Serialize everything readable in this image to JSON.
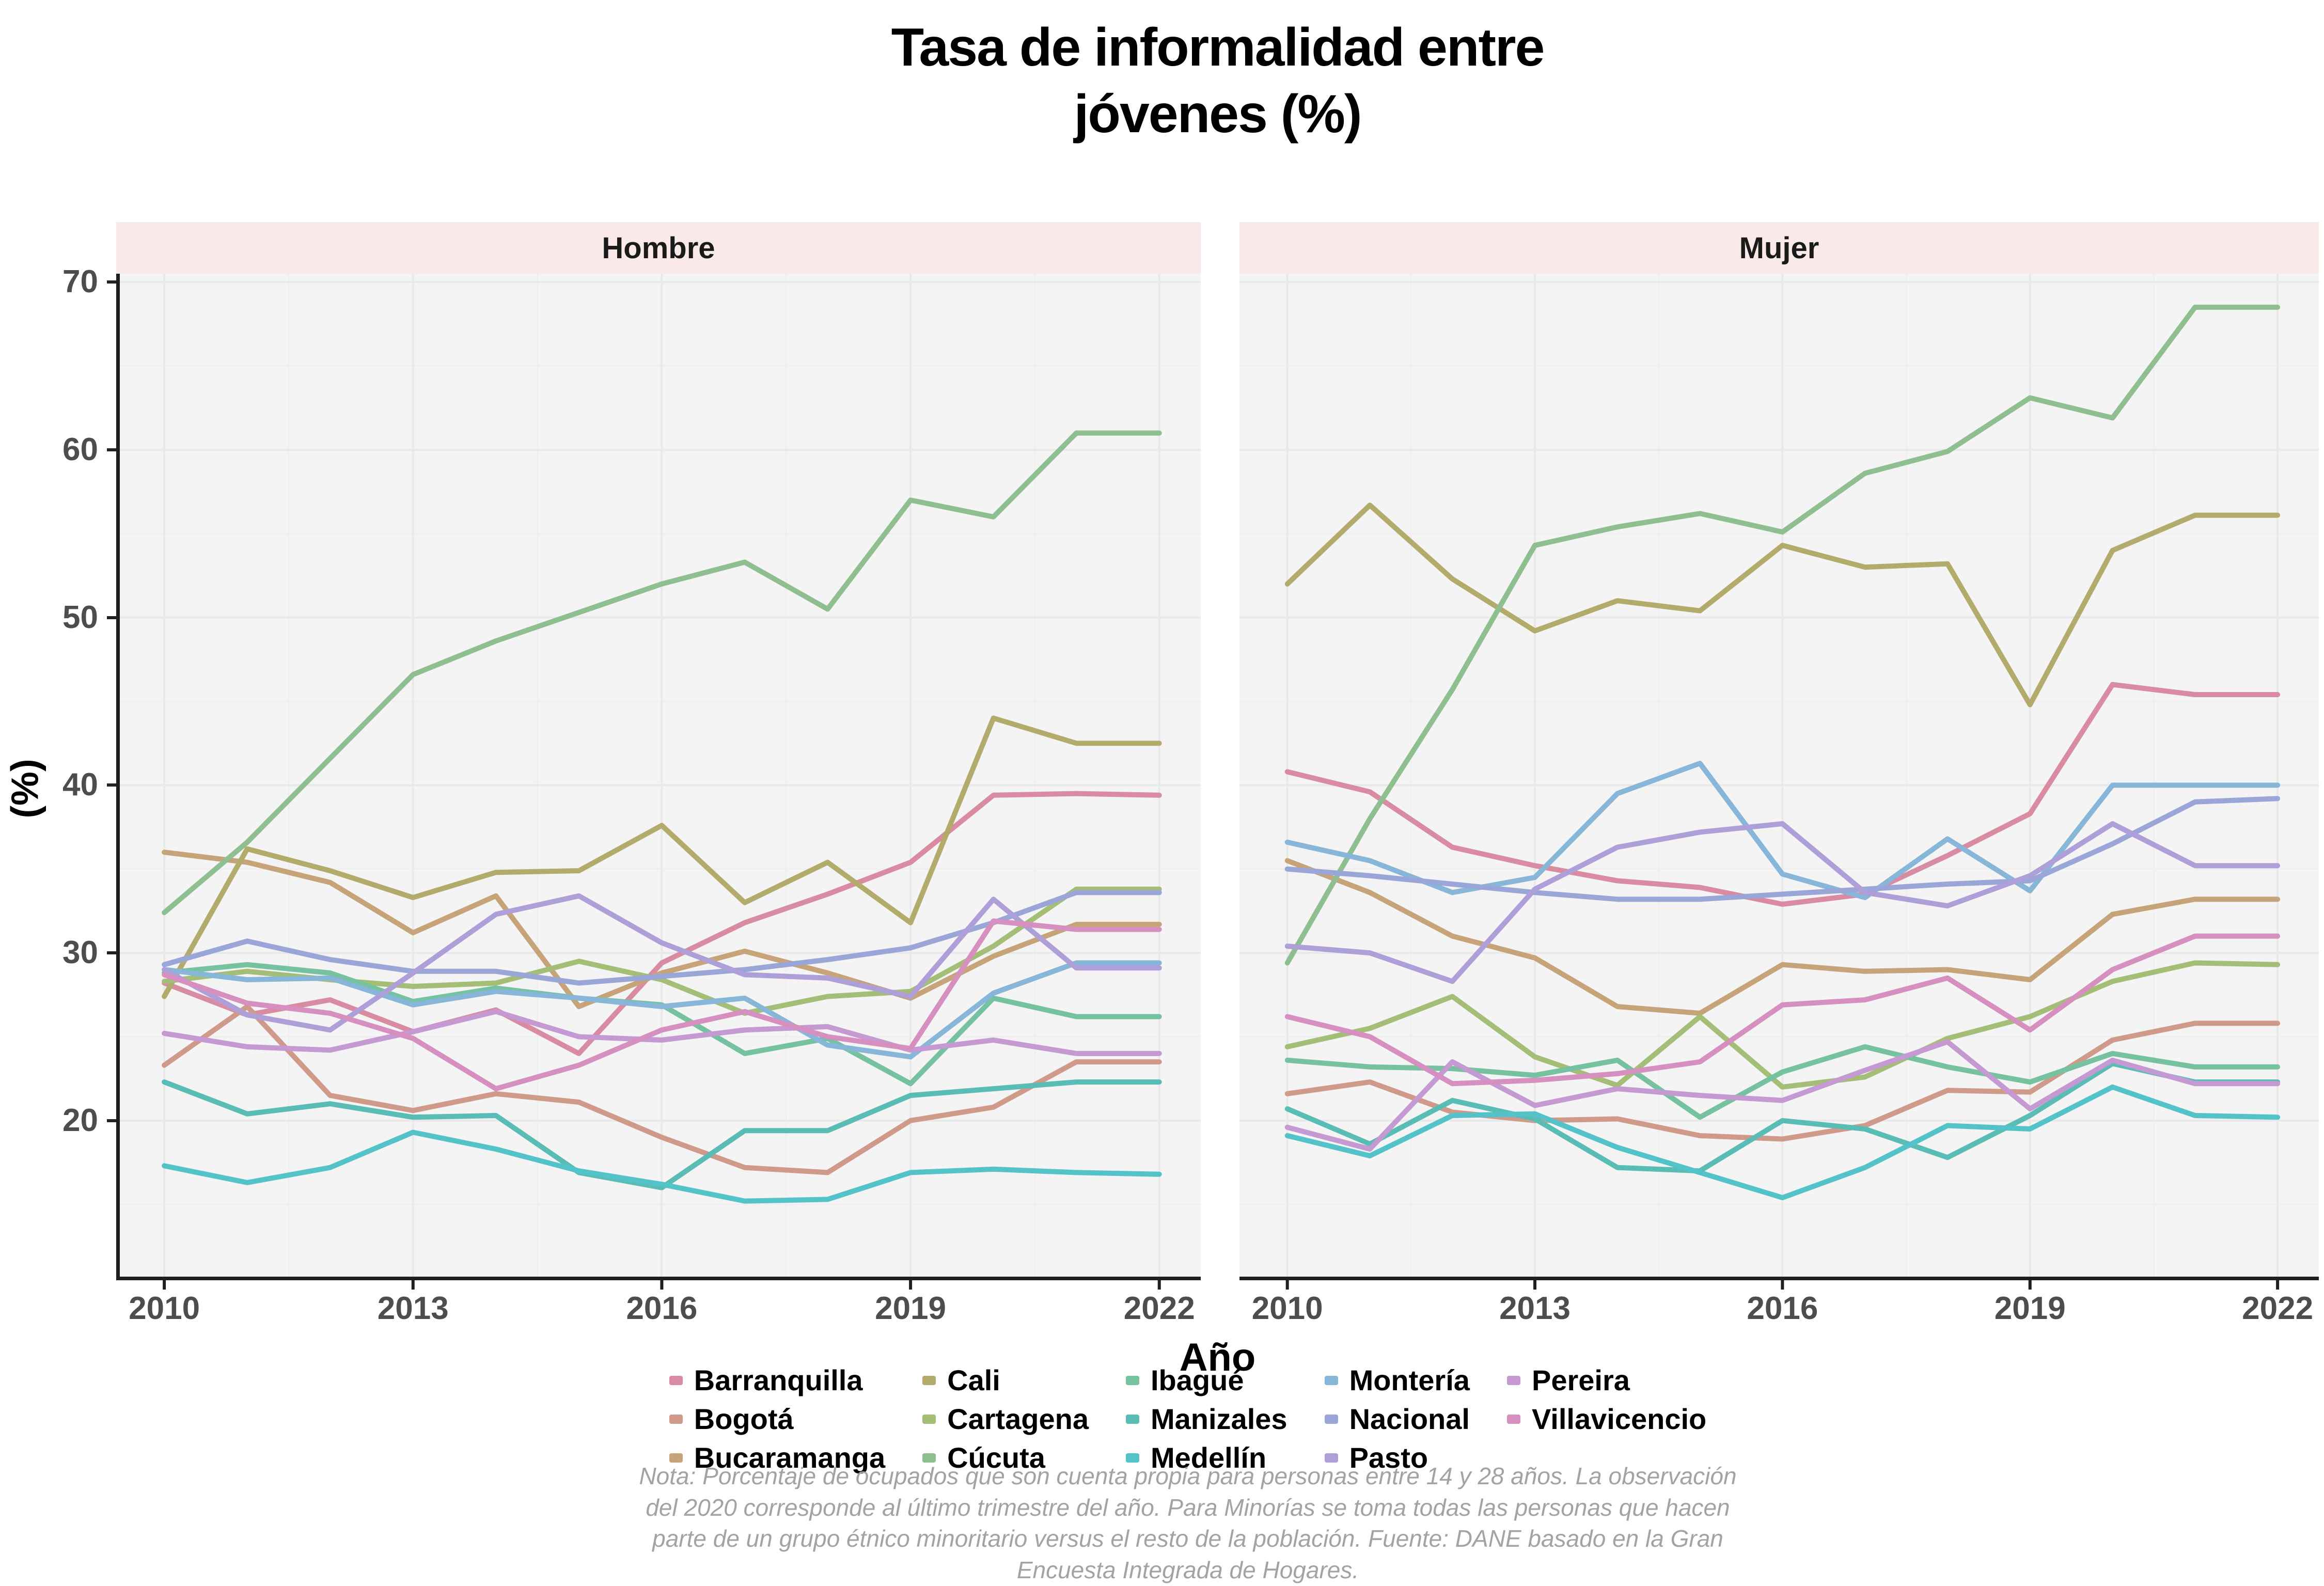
{
  "title": {
    "line1": "Tasa de informalidad entre",
    "line2": "jóvenes (%)"
  },
  "axes": {
    "x_title": "Año",
    "y_title": "(%)",
    "x_ticks": [
      2010,
      2013,
      2016,
      2019,
      2022
    ],
    "y_ticks": [
      70,
      60,
      50,
      40,
      30,
      20
    ]
  },
  "caption": {
    "line1": "Nota: Porcentaje de ocupados que son cuenta propia para personas entre 14 y 28 años. La observación",
    "line2": "del 2020 corresponde al último trimestre del año. Para Minorías se toma todas las personas que hacen",
    "line3": "parte de un grupo étnico minoritario versus el resto de la población. Fuente: DANE basado en la Gran",
    "line4": "Encuesta Integrada de Hogares."
  },
  "chart_data": {
    "type": "line",
    "title": "Tasa de informalidad entre jóvenes (%)",
    "xlabel": "Año",
    "ylabel": "(%)",
    "x": [
      2010,
      2011,
      2012,
      2013,
      2014,
      2015,
      2016,
      2017,
      2018,
      2019,
      2020,
      2021,
      2022
    ],
    "xlim": [
      2009.42,
      2022.5
    ],
    "ylim": [
      10.6,
      70.5
    ],
    "y_major_gridlines": [
      20,
      30,
      40,
      50,
      60,
      70
    ],
    "y_minor_gridlines": [
      15,
      25,
      35,
      45,
      55,
      65
    ],
    "x_minor_gridlines": [
      2011.5,
      2014.5,
      2017.5,
      2020.5
    ],
    "grid": true,
    "legend_position": "bottom",
    "colors": {
      "Barranquilla": "#d98ba2",
      "Bogotá": "#d09a8a",
      "Bucaramanga": "#c6a379",
      "Cali": "#b3ab6c",
      "Cartagena": "#a4bd77",
      "Cúcuta": "#8fbf90",
      "Ibagué": "#75c1a0",
      "Manizales": "#59bcb5",
      "Medellín": "#54c3c9",
      "Montería": "#88b6d8",
      "Nacional": "#9aa6d8",
      "Pasto": "#af9fd9",
      "Pereira": "#c599d1",
      "Villavicencio": "#d690c0"
    },
    "facets": [
      {
        "label": "Hombre",
        "series": [
          {
            "name": "Barranquilla",
            "values": [
              28.2,
              26.3,
              27.2,
              25.3,
              26.6,
              24.0,
              29.4,
              31.8,
              33.5,
              35.4,
              39.4,
              39.5,
              39.4
            ]
          },
          {
            "name": "Bogotá",
            "values": [
              23.3,
              26.8,
              21.5,
              20.6,
              21.6,
              21.1,
              19.0,
              17.2,
              16.9,
              20.0,
              20.8,
              23.5,
              23.5
            ]
          },
          {
            "name": "Bucaramanga",
            "values": [
              36.0,
              35.4,
              34.2,
              31.2,
              33.4,
              26.8,
              28.8,
              30.1,
              28.8,
              27.3,
              29.8,
              31.7,
              31.7
            ]
          },
          {
            "name": "Cali",
            "values": [
              27.4,
              36.2,
              34.9,
              33.3,
              34.8,
              34.9,
              37.6,
              33.0,
              35.4,
              31.8,
              44.0,
              42.5,
              42.5
            ]
          },
          {
            "name": "Cartagena",
            "values": [
              28.3,
              28.9,
              28.4,
              28.0,
              28.2,
              29.5,
              28.4,
              26.4,
              27.4,
              27.7,
              30.4,
              33.8,
              33.8
            ]
          },
          {
            "name": "Cúcuta",
            "values": [
              32.4,
              36.6,
              41.6,
              46.6,
              48.6,
              50.3,
              52.0,
              53.3,
              50.5,
              57.0,
              56.0,
              61.0,
              61.0
            ]
          },
          {
            "name": "Ibagué",
            "values": [
              28.8,
              29.3,
              28.8,
              27.1,
              27.9,
              27.3,
              26.9,
              24.0,
              24.9,
              22.2,
              27.3,
              26.2,
              26.2
            ]
          },
          {
            "name": "Manizales",
            "values": [
              22.3,
              20.4,
              21.0,
              20.2,
              20.3,
              16.9,
              16.0,
              19.4,
              19.4,
              21.5,
              21.9,
              22.3,
              22.3
            ]
          },
          {
            "name": "Medellín",
            "values": [
              17.3,
              16.3,
              17.2,
              19.3,
              18.3,
              17.0,
              16.2,
              15.2,
              15.3,
              16.9,
              17.1,
              16.9,
              16.8
            ]
          },
          {
            "name": "Montería",
            "values": [
              29.0,
              28.4,
              28.5,
              26.9,
              27.7,
              27.3,
              26.8,
              27.3,
              24.5,
              23.8,
              27.6,
              29.4,
              29.4
            ]
          },
          {
            "name": "Nacional",
            "values": [
              29.3,
              30.7,
              29.6,
              28.9,
              28.9,
              28.2,
              28.6,
              29.0,
              29.6,
              30.3,
              31.8,
              33.6,
              33.6
            ]
          },
          {
            "name": "Pasto",
            "values": [
              29.0,
              26.3,
              25.4,
              28.8,
              32.3,
              33.4,
              30.6,
              28.7,
              28.5,
              27.4,
              33.2,
              29.1,
              29.1
            ]
          },
          {
            "name": "Pereira",
            "values": [
              25.2,
              24.4,
              24.2,
              25.3,
              26.5,
              25.0,
              24.8,
              25.4,
              25.6,
              24.2,
              24.8,
              24.0,
              24.0
            ]
          },
          {
            "name": "Villavicencio",
            "values": [
              28.7,
              27.0,
              26.4,
              24.9,
              21.9,
              23.3,
              25.4,
              26.5,
              25.0,
              24.3,
              31.9,
              31.4,
              31.4
            ]
          }
        ]
      },
      {
        "label": "Mujer",
        "series": [
          {
            "name": "Barranquilla",
            "values": [
              40.8,
              39.6,
              36.3,
              35.2,
              34.3,
              33.9,
              32.9,
              33.5,
              35.8,
              38.3,
              46.0,
              45.4,
              45.4
            ]
          },
          {
            "name": "Bogotá",
            "values": [
              21.6,
              22.3,
              20.5,
              20.0,
              20.1,
              19.1,
              18.9,
              19.7,
              21.8,
              21.7,
              24.8,
              25.8,
              25.8
            ]
          },
          {
            "name": "Bucaramanga",
            "values": [
              35.5,
              33.6,
              31.0,
              29.7,
              26.8,
              26.4,
              29.3,
              28.9,
              29.0,
              28.4,
              32.3,
              33.2,
              33.2
            ]
          },
          {
            "name": "Cali",
            "values": [
              52.0,
              56.7,
              52.3,
              49.2,
              51.0,
              50.4,
              54.3,
              53.0,
              53.2,
              44.8,
              54.0,
              56.1,
              56.1
            ]
          },
          {
            "name": "Cartagena",
            "values": [
              24.4,
              25.5,
              27.4,
              23.8,
              22.1,
              26.2,
              22.0,
              22.6,
              24.9,
              26.2,
              28.3,
              29.4,
              29.3
            ]
          },
          {
            "name": "Cúcuta",
            "values": [
              29.4,
              38.0,
              45.7,
              54.3,
              55.4,
              56.2,
              55.1,
              58.6,
              59.9,
              63.1,
              61.9,
              68.5,
              68.5
            ]
          },
          {
            "name": "Ibagué",
            "values": [
              23.6,
              23.2,
              23.1,
              22.7,
              23.6,
              20.2,
              22.9,
              24.4,
              23.2,
              22.3,
              24.0,
              23.2,
              23.2
            ]
          },
          {
            "name": "Manizales",
            "values": [
              20.7,
              18.6,
              21.2,
              20.1,
              17.2,
              17.0,
              20.0,
              19.5,
              17.8,
              20.3,
              23.4,
              22.3,
              22.3
            ]
          },
          {
            "name": "Medellín",
            "values": [
              19.1,
              17.9,
              20.3,
              20.4,
              18.4,
              16.9,
              15.4,
              17.2,
              19.7,
              19.5,
              22.0,
              20.3,
              20.2
            ]
          },
          {
            "name": "Montería",
            "values": [
              36.6,
              35.5,
              33.6,
              34.5,
              39.5,
              41.3,
              34.7,
              33.3,
              36.8,
              33.7,
              40.0,
              40.0,
              40.0
            ]
          },
          {
            "name": "Nacional",
            "values": [
              35.0,
              34.6,
              34.1,
              33.6,
              33.2,
              33.2,
              33.5,
              33.8,
              34.1,
              34.3,
              36.5,
              39.0,
              39.2
            ]
          },
          {
            "name": "Pasto",
            "values": [
              30.4,
              30.0,
              28.3,
              33.8,
              36.3,
              37.2,
              37.7,
              33.6,
              32.8,
              34.6,
              37.7,
              35.2,
              35.2
            ]
          },
          {
            "name": "Pereira",
            "values": [
              19.6,
              18.3,
              23.5,
              20.9,
              21.9,
              21.5,
              21.2,
              23.0,
              24.7,
              20.7,
              23.6,
              22.2,
              22.2
            ]
          },
          {
            "name": "Villavicencio",
            "values": [
              26.2,
              25.0,
              22.2,
              22.4,
              22.8,
              23.5,
              26.9,
              27.2,
              28.5,
              25.4,
              29.0,
              31.0,
              31.0
            ]
          }
        ]
      }
    ]
  },
  "legend": {
    "items": [
      "Barranquilla",
      "Bogotá",
      "Bucaramanga",
      "Cali",
      "Cartagena",
      "Cúcuta",
      "Ibagué",
      "Manizales",
      "Medellín",
      "Montería",
      "Nacional",
      "Pasto",
      "Pereira",
      "Villavicencio"
    ]
  }
}
